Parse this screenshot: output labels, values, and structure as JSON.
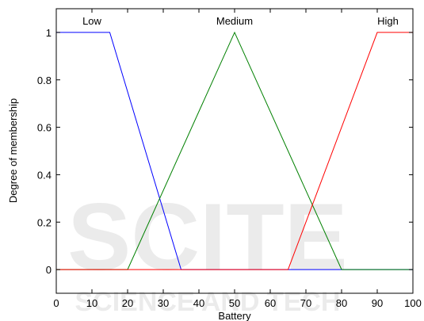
{
  "chart_data": {
    "type": "line",
    "xlabel": "Battery",
    "ylabel": "Degree of membership",
    "xlim": [
      0,
      100
    ],
    "ylim": [
      -0.1,
      1.1
    ],
    "xticks": [
      0,
      10,
      20,
      30,
      40,
      50,
      60,
      70,
      80,
      90,
      100
    ],
    "yticks": [
      0,
      0.2,
      0.4,
      0.6,
      0.8,
      1
    ],
    "xtick_labels": [
      "0",
      "10",
      "20",
      "30",
      "40",
      "50",
      "60",
      "70",
      "80",
      "90",
      "100"
    ],
    "ytick_labels": [
      "0",
      "0.2",
      "0.4",
      "0.6",
      "0.8",
      "1"
    ],
    "grid": false,
    "series": [
      {
        "name": "Low",
        "color": "#0000ff",
        "x": [
          0,
          15,
          35,
          100
        ],
        "y": [
          1,
          1,
          0,
          0
        ],
        "label_x": 10
      },
      {
        "name": "Medium",
        "color": "#008000",
        "x": [
          0,
          20,
          50,
          80,
          100
        ],
        "y": [
          0,
          0,
          1,
          0,
          0
        ],
        "label_x": 50
      },
      {
        "name": "High",
        "color": "#ff0000",
        "x": [
          0,
          65,
          90,
          100
        ],
        "y": [
          0,
          0,
          1,
          1
        ],
        "label_x": 93
      }
    ]
  },
  "watermark": {
    "line1": "SCITE",
    "line2": "SCIENCE AND TECH"
  }
}
